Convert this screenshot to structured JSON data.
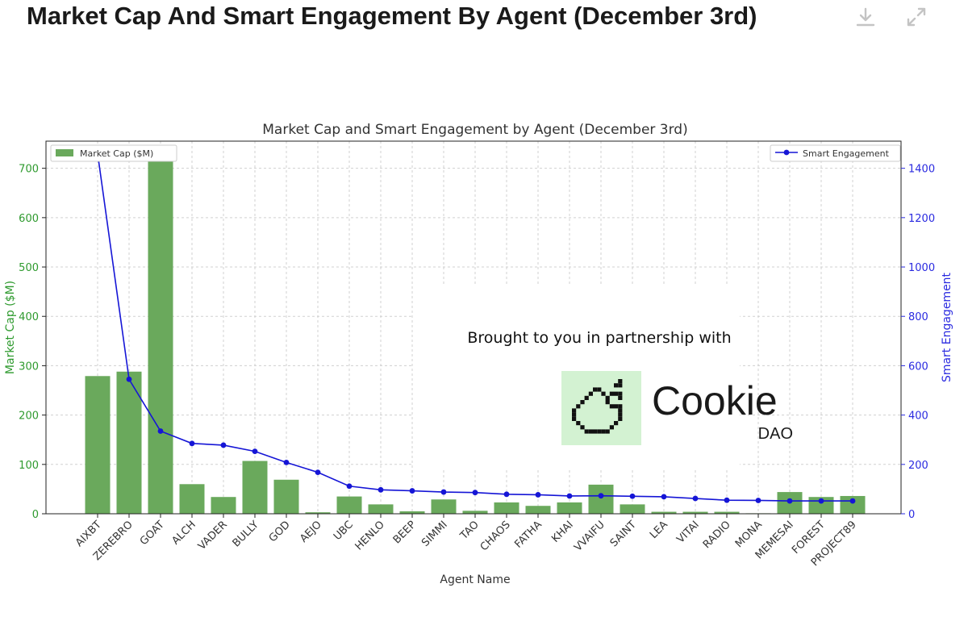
{
  "page": {
    "title": "Market Cap And Smart Engagement By Agent (December 3rd)"
  },
  "toolbar": [
    {
      "name": "download-icon"
    },
    {
      "name": "expand-icon"
    }
  ],
  "colors": {
    "bar": "#6aa95c",
    "line": "#1515d6",
    "left_axis": "#2e9a2e",
    "right_axis": "#2a2ae0",
    "logo_bg": "#d3f2d2"
  },
  "sponsor": {
    "text": "Brought to you in partnership with",
    "logo_word": "Cookie",
    "logo_sub": "DAO",
    "logo_icon": "cookie-icon"
  },
  "chart_data": {
    "type": "bar",
    "title": "Market Cap and Smart Engagement by Agent (December 3rd)",
    "xlabel": "Agent Name",
    "ylabel": "Market Cap ($M)",
    "y2label": "Smart Engagement",
    "ylim": [
      0,
      755
    ],
    "y2lim": [
      0,
      1510
    ],
    "yticks": [
      0,
      100,
      200,
      300,
      400,
      500,
      600,
      700
    ],
    "y2ticks": [
      0,
      200,
      400,
      600,
      800,
      1000,
      1200,
      1400
    ],
    "grid": true,
    "categories": [
      "AIXBT",
      "ZEREBRO",
      "GOAT",
      "ALCH",
      "VADER",
      "BULLY",
      "GOD",
      "AEJO",
      "UBC",
      "HENLO",
      "BEEP",
      "SIMMI",
      "TAO",
      "CHAOS",
      "FATHA",
      "KHAI",
      "VVAIFU",
      "SAINT",
      "LEA",
      "VITAI",
      "RADIO",
      "MONA",
      "MEMESAI",
      "FOREST",
      "PROJECT89"
    ],
    "series": [
      {
        "name": "Market Cap ($M)",
        "type": "bar",
        "axis": "left",
        "values": [
          279,
          288,
          720,
          60,
          34,
          107,
          69,
          3,
          35,
          19,
          5,
          29,
          6,
          23,
          16,
          23,
          59,
          19,
          4,
          4,
          4,
          1,
          44,
          34,
          36
        ]
      },
      {
        "name": "Smart Engagement",
        "type": "line",
        "axis": "right",
        "values": [
          1460,
          545,
          335,
          285,
          278,
          253,
          208,
          168,
          112,
          97,
          93,
          88,
          86,
          79,
          77,
          72,
          73,
          71,
          69,
          62,
          55,
          54,
          52,
          52,
          52
        ]
      }
    ],
    "legend": {
      "left": "top-left",
      "right": "top-right"
    }
  }
}
